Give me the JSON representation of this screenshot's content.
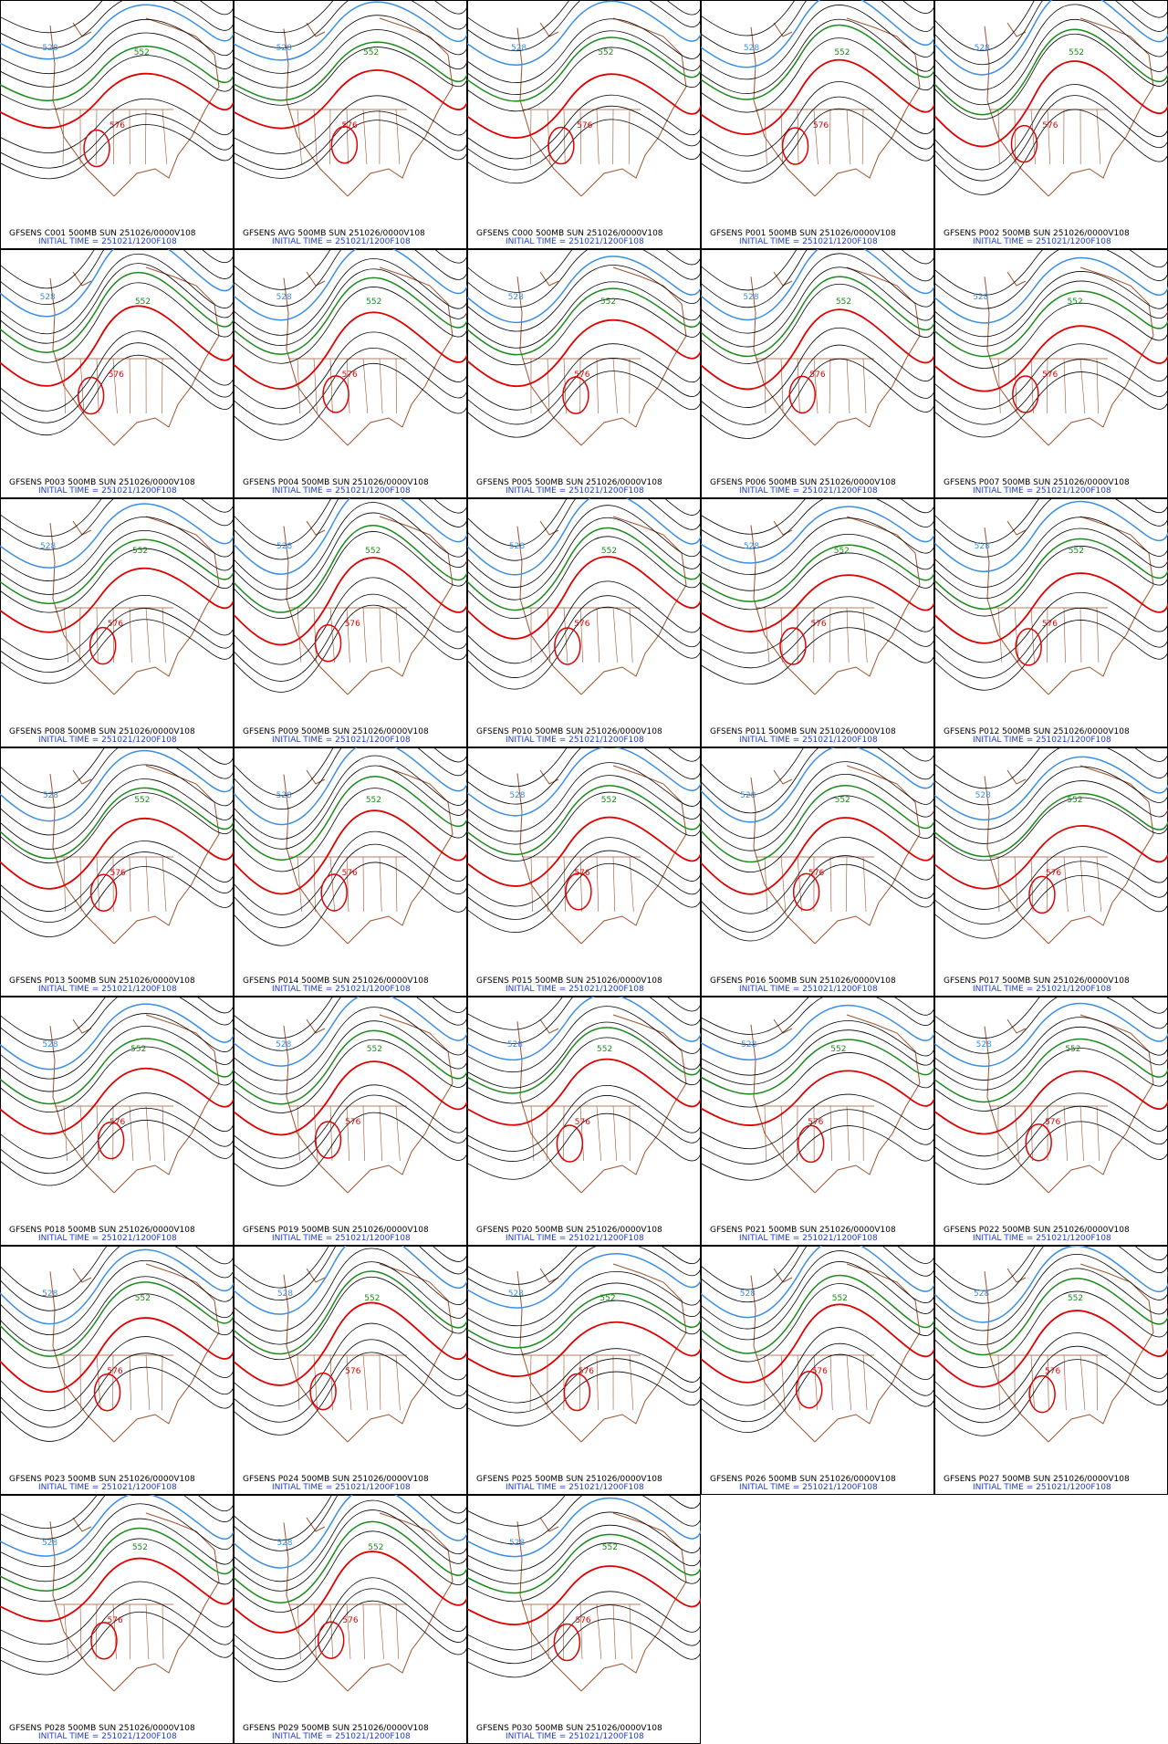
{
  "panels": [
    {
      "line1": "GFSENS C001 500MB SUN 251026/0000V108",
      "line2": "INITIAL TIME = 251021/1200F108"
    },
    {
      "line1": "GFSENS AVG 500MB SUN 251026/0000V108",
      "line2": "INITIAL TIME = 251021/1200F108"
    },
    {
      "line1": "GFSENS C000 500MB SUN 251026/0000V108",
      "line2": "INITIAL TIME = 251021/1200F108"
    },
    {
      "line1": "GFSENS P001 500MB SUN 251026/0000V108",
      "line2": "INITIAL TIME = 251021/1200F108"
    },
    {
      "line1": "GFSENS P002 500MB SUN 251026/0000V108",
      "line2": "INITIAL TIME = 251021/1200F108"
    },
    {
      "line1": "GFSENS P003 500MB SUN 251026/0000V108",
      "line2": "INITIAL TIME = 251021/1200F108"
    },
    {
      "line1": "GFSENS P004 500MB SUN 251026/0000V108",
      "line2": "INITIAL TIME = 251021/1200F108"
    },
    {
      "line1": "GFSENS P005 500MB SUN 251026/0000V108",
      "line2": "INITIAL TIME = 251021/1200F108"
    },
    {
      "line1": "GFSENS P006 500MB SUN 251026/0000V108",
      "line2": "INITIAL TIME = 251021/1200F108"
    },
    {
      "line1": "GFSENS P007 500MB SUN 251026/0000V108",
      "line2": "INITIAL TIME = 251021/1200F108"
    },
    {
      "line1": "GFSENS P008 500MB SUN 251026/0000V108",
      "line2": "INITIAL TIME = 251021/1200F108"
    },
    {
      "line1": "GFSENS P009 500MB SUN 251026/0000V108",
      "line2": "INITIAL TIME = 251021/1200F108"
    },
    {
      "line1": "GFSENS P010 500MB SUN 251026/0000V108",
      "line2": "INITIAL TIME = 251021/1200F108"
    },
    {
      "line1": "GFSENS P011 500MB SUN 251026/0000V108",
      "line2": "INITIAL TIME = 251021/1200F108"
    },
    {
      "line1": "GFSENS P012 500MB SUN 251026/0000V108",
      "line2": "INITIAL TIME = 251021/1200F108"
    },
    {
      "line1": "GFSENS P013 500MB SUN 251026/0000V108",
      "line2": "INITIAL TIME = 251021/1200F108"
    },
    {
      "line1": "GFSENS P014 500MB SUN 251026/0000V108",
      "line2": "INITIAL TIME = 251021/1200F108"
    },
    {
      "line1": "GFSENS P015 500MB SUN 251026/0000V108",
      "line2": "INITIAL TIME = 251021/1200F108"
    },
    {
      "line1": "GFSENS P016 500MB SUN 251026/0000V108",
      "line2": "INITIAL TIME = 251021/1200F108"
    },
    {
      "line1": "GFSENS P017 500MB SUN 251026/0000V108",
      "line2": "INITIAL TIME = 251021/1200F108"
    },
    {
      "line1": "GFSENS P018 500MB SUN 251026/0000V108",
      "line2": "INITIAL TIME = 251021/1200F108"
    },
    {
      "line1": "GFSENS P019 500MB SUN 251026/0000V108",
      "line2": "INITIAL TIME = 251021/1200F108"
    },
    {
      "line1": "GFSENS P020 500MB SUN 251026/0000V108",
      "line2": "INITIAL TIME = 251021/1200F108"
    },
    {
      "line1": "GFSENS P021 500MB SUN 251026/0000V108",
      "line2": "INITIAL TIME = 251021/1200F108"
    },
    {
      "line1": "GFSENS P022 500MB SUN 251026/0000V108",
      "line2": "INITIAL TIME = 251021/1200F108"
    },
    {
      "line1": "GFSENS P023 500MB SUN 251026/0000V108",
      "line2": "INITIAL TIME = 251021/1200F108"
    },
    {
      "line1": "GFSENS P024 500MB SUN 251026/0000V108",
      "line2": "INITIAL TIME = 251021/1200F108"
    },
    {
      "line1": "GFSENS P025 500MB SUN 251026/0000V108",
      "line2": "INITIAL TIME = 251021/1200F108"
    },
    {
      "line1": "GFSENS P026 500MB SUN 251026/0000V108",
      "line2": "INITIAL TIME = 251021/1200F108"
    },
    {
      "line1": "GFSENS P027 500MB SUN 251026/0000V108",
      "line2": "INITIAL TIME = 251021/1200F108"
    },
    {
      "line1": "GFSENS P028 500MB SUN 251026/0000V108",
      "line2": "INITIAL TIME = 251021/1200F108"
    },
    {
      "line1": "GFSENS P029 500MB SUN 251026/0000V108",
      "line2": "INITIAL TIME = 251021/1200F108"
    },
    {
      "line1": "GFSENS P030 500MB SUN 251026/0000V108",
      "line2": "INITIAL TIME = 251021/1200F108"
    }
  ],
  "contour_levels": [
    528,
    552,
    576
  ]
}
